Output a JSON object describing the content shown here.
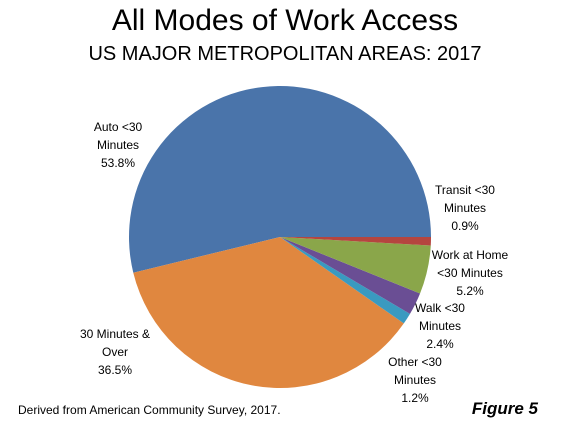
{
  "chart_data": {
    "type": "pie",
    "title": "All Modes of Work Access",
    "subtitle": "US MAJOR METROPOLITAN AREAS: 2017",
    "categories": [
      "Auto <30 Minutes",
      "30 Minutes & Over",
      "Other <30 Minutes",
      "Walk <30 Minutes",
      "Work at Home <30 Minutes",
      "Transit <30 Minutes"
    ],
    "values": [
      53.8,
      36.5,
      1.2,
      2.4,
      5.2,
      0.9
    ],
    "value_labels": [
      "53.8%",
      "36.5%",
      "1.2%",
      "2.4%",
      "5.2%",
      "0.9%"
    ],
    "colors": [
      "#4a74aa",
      "#e0873f",
      "#3a9ac0",
      "#6a4e94",
      "#8aa64a",
      "#b5453f"
    ],
    "source": "Derived from American Community Survey, 2017.",
    "figure_label": "Figure 5"
  }
}
